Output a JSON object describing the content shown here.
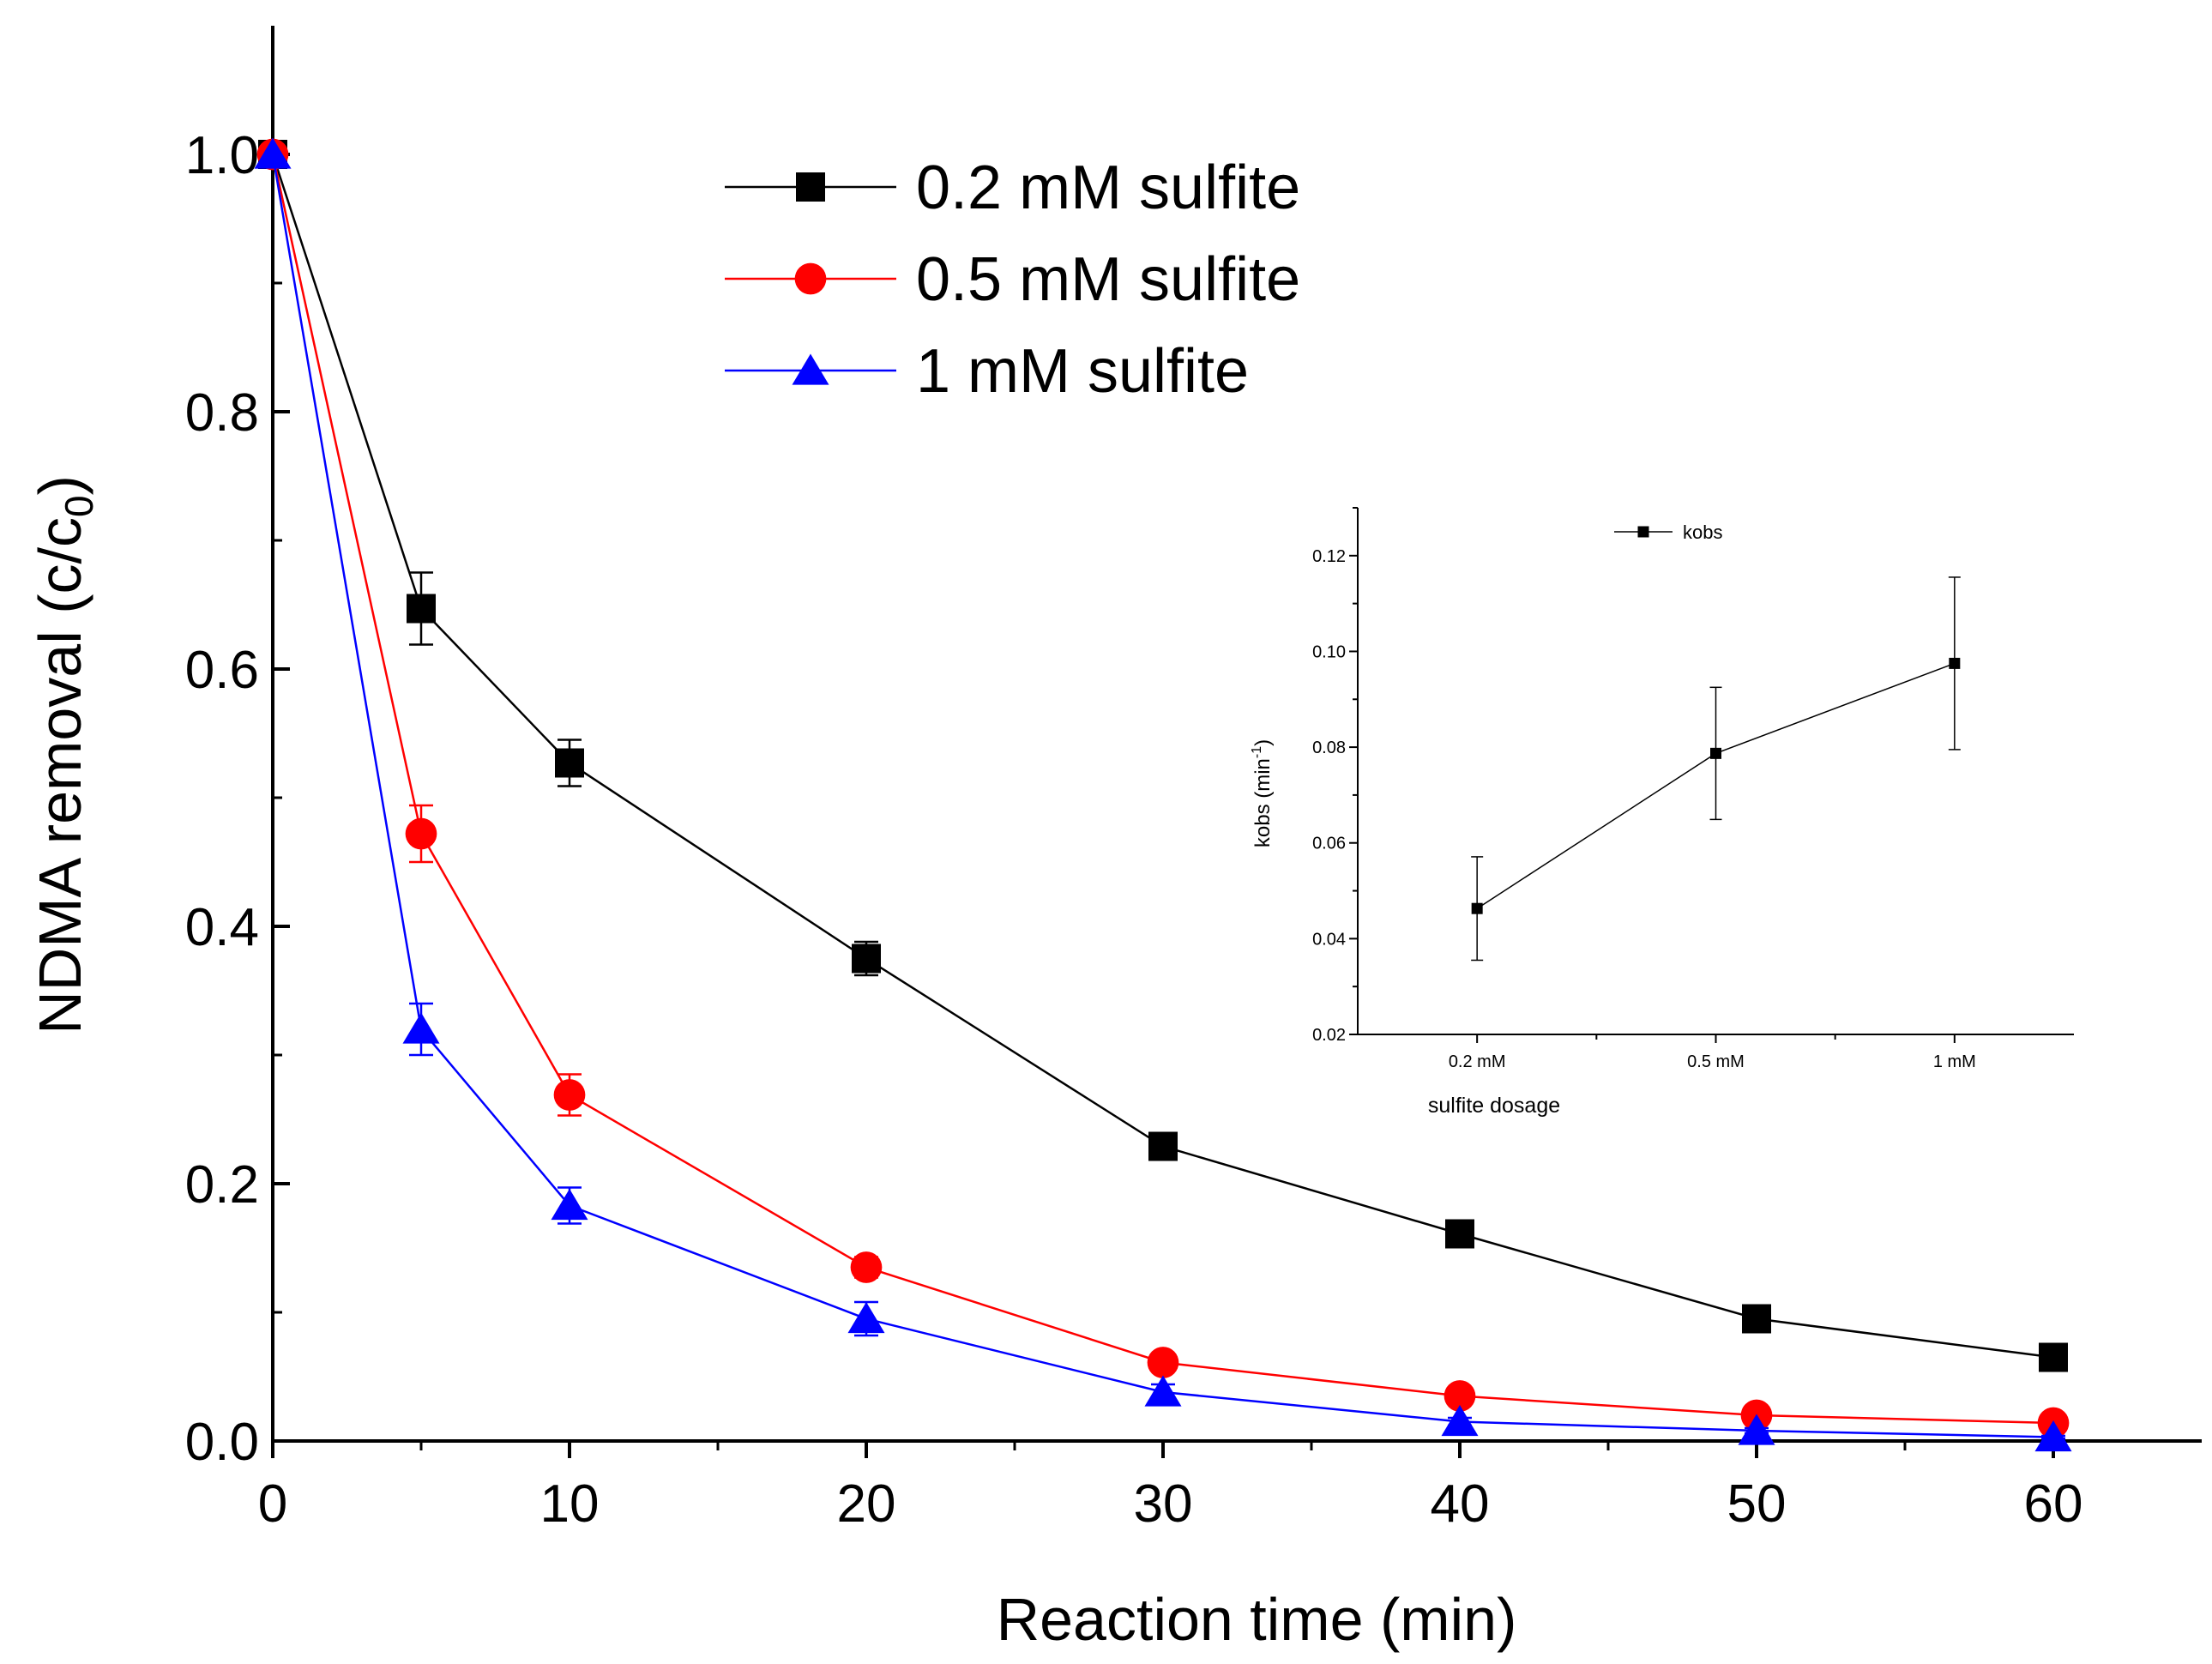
{
  "chart_data": [
    {
      "type": "line",
      "xlabel": "Reaction time (min)",
      "ylabel": "NDMA removal (c/c",
      "ylabel_sub": "0",
      "ylabel_close": ")",
      "xlim": [
        0,
        65
      ],
      "ylim": [
        0,
        1.1
      ],
      "xticks": [
        0,
        10,
        20,
        30,
        40,
        50,
        60
      ],
      "xtick_labels": [
        "0",
        "10",
        "20",
        "30",
        "40",
        "50",
        "60"
      ],
      "yticks": [
        0.0,
        0.2,
        0.4,
        0.6,
        0.8,
        1.0
      ],
      "ytick_labels": [
        "0.0",
        "0.2",
        "0.4",
        "0.6",
        "0.8",
        "1.0"
      ],
      "grid": false,
      "legend_position": "top-center",
      "x": [
        0,
        5,
        10,
        20,
        30,
        40,
        50,
        60
      ],
      "series": [
        {
          "name": "0.2 mM sulfite",
          "color": "#000000",
          "marker": "square",
          "values": [
            1.0,
            0.647,
            0.527,
            0.375,
            0.229,
            0.161,
            0.095,
            0.065
          ],
          "errors": [
            0,
            0.028,
            0.018,
            0.013,
            0.005,
            0.005,
            0.005,
            0.005
          ]
        },
        {
          "name": "0.5 mM sulfite",
          "color": "#ff0000",
          "marker": "circle",
          "values": [
            1.0,
            0.472,
            0.269,
            0.135,
            0.061,
            0.035,
            0.02,
            0.014
          ],
          "errors": [
            0,
            0.022,
            0.016,
            0.008,
            0.005,
            0.004,
            0.003,
            0.003
          ]
        },
        {
          "name": "1 mM sulfite",
          "color": "#0000ff",
          "marker": "triangle",
          "values": [
            1.0,
            0.32,
            0.183,
            0.095,
            0.038,
            0.015,
            0.008,
            0.003
          ],
          "errors": [
            0,
            0.02,
            0.014,
            0.013,
            0.006,
            0.003,
            0.002,
            0.001
          ]
        }
      ]
    },
    {
      "type": "line",
      "xlabel": "sulfite dosage",
      "ylabel": "kobs (min",
      "ylabel_sup": "-1",
      "ylabel_close": ")",
      "categories": [
        "0.2 mM",
        "0.5 mM",
        "1 mM"
      ],
      "ylim": [
        0.02,
        0.13
      ],
      "yticks": [
        0.02,
        0.04,
        0.06,
        0.08,
        0.1,
        0.12
      ],
      "ytick_labels": [
        "0.02",
        "0.04",
        "0.06",
        "0.08",
        "0.10",
        "0.12"
      ],
      "grid": false,
      "legend_position": "top-left",
      "series": [
        {
          "name": "kobs",
          "color": "#000000",
          "marker": "square",
          "values": [
            0.0463,
            0.0787,
            0.0975
          ],
          "errors": [
            0.0108,
            0.0138,
            0.018
          ]
        }
      ]
    }
  ]
}
